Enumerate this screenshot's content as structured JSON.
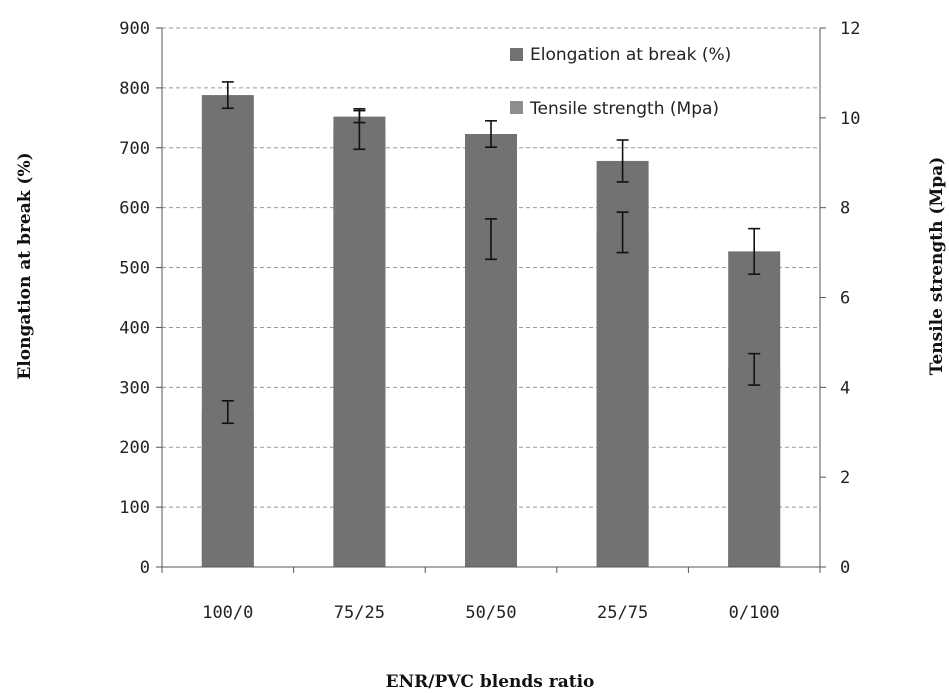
{
  "chart_data": {
    "type": "bar",
    "categories": [
      "100/0",
      "75/25",
      "50/50",
      "25/75",
      "0/100"
    ],
    "xlabel": "ENR/PVC blends ratio",
    "ylabel": "Elongation at break (%)",
    "y2label": "Tensile strength (Mpa)",
    "ylim": [
      0,
      900
    ],
    "y2lim": [
      0,
      12
    ],
    "yticks": [
      "0",
      "100",
      "200",
      "300",
      "400",
      "500",
      "600",
      "700",
      "800",
      "900"
    ],
    "y2ticks": [
      "0",
      "2",
      "4",
      "6",
      "8",
      "10",
      "12"
    ],
    "grid": true,
    "legend": "top-right",
    "series": [
      {
        "name": "Elongation at break (%)",
        "axis": "left",
        "color": "#727272",
        "values": [
          788,
          752,
          723,
          678,
          527
        ],
        "errors": [
          22,
          10,
          22,
          35,
          38
        ]
      },
      {
        "name": "Tensile strength (Mpa)",
        "axis": "right",
        "color": "#8e8e8e",
        "values": [
          3.45,
          9.75,
          7.3,
          7.45,
          4.4
        ],
        "errors": [
          0.25,
          0.45,
          0.45,
          0.45,
          0.35
        ]
      }
    ]
  }
}
